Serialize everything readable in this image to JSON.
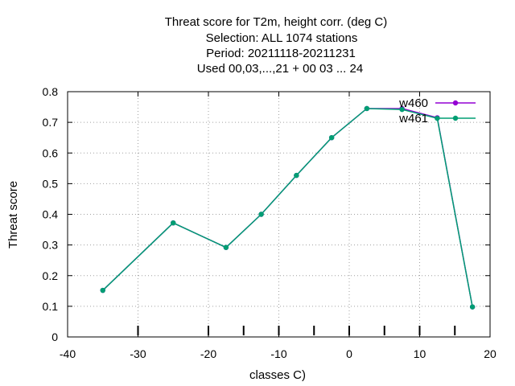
{
  "chart_data": {
    "type": "line",
    "title_lines": [
      "Threat score  for T2m, height corr. (deg C)",
      "Selection: ALL   1074 stations",
      "Period: 20211118-20211231",
      "Used  00,03,...,21  + 00 03 ... 24"
    ],
    "xlabel": "classes C)",
    "ylabel": "Threat score",
    "xlim": [
      -40,
      20
    ],
    "ylim": [
      0,
      0.8
    ],
    "xticks": [
      "-40",
      "-30",
      "-20",
      "-10",
      "0",
      "10",
      "20"
    ],
    "yticks": [
      "0",
      "0.1",
      "0.2",
      "0.3",
      "0.4",
      "0.5",
      "0.6",
      "0.7",
      "0.8"
    ],
    "grid": true,
    "legend_position": "top-right",
    "x": [
      -35,
      -25,
      -17.5,
      -12.5,
      -7.5,
      -2.5,
      2.5,
      7.5,
      12.5,
      17.5
    ],
    "series": [
      {
        "name": "w460",
        "color": "#9400d3",
        "values": [
          0.152,
          0.372,
          0.292,
          0.4,
          0.527,
          0.65,
          0.745,
          0.745,
          0.715,
          0.098
        ]
      },
      {
        "name": "w461",
        "color": "#009e73",
        "values": [
          0.152,
          0.372,
          0.292,
          0.4,
          0.527,
          0.65,
          0.745,
          0.742,
          0.713,
          0.098
        ]
      }
    ],
    "class_boundaries": [
      -30,
      -20,
      -15,
      -10,
      -5,
      0,
      5,
      10,
      15
    ]
  }
}
